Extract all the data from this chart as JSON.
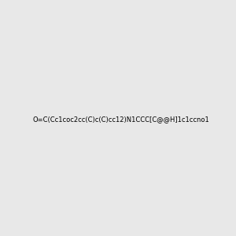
{
  "smiles": "O=C(Cc1coc2cc(C)c(C)cc12)N1CCC[C@@H]1c1ccno1",
  "image_size": 300,
  "background_color": "#e8e8e8"
}
